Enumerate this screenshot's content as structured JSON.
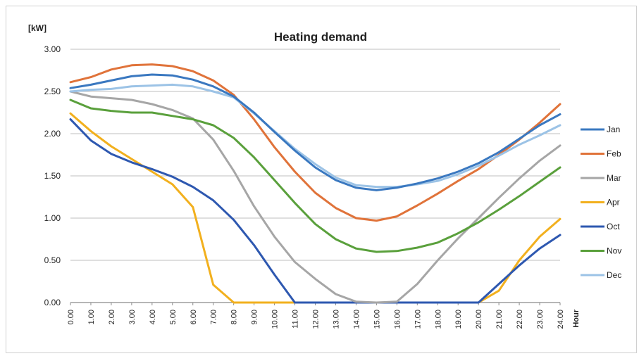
{
  "chart_data": {
    "type": "line",
    "title": "Heating demand",
    "ylabel": "[kW]",
    "xlabel": "Hour",
    "ylim": [
      0,
      3
    ],
    "yticks": [
      "0.00",
      "0.50",
      "1.00",
      "1.50",
      "2.00",
      "2.50",
      "3.00"
    ],
    "categories": [
      "0.00",
      "1.00",
      "2.00",
      "3.00",
      "4.00",
      "5.00",
      "6.00",
      "7.00",
      "8.00",
      "9.00",
      "10.00",
      "11.00",
      "12.00",
      "13.00",
      "14.00",
      "15.00",
      "16.00",
      "17.00",
      "18.00",
      "19.00",
      "20.00",
      "21.00",
      "22.00",
      "23.00",
      "24.00"
    ],
    "grid": true,
    "legend_position": "right",
    "series": [
      {
        "name": "Jan",
        "color": "#3a78c0",
        "values": [
          2.54,
          2.58,
          2.63,
          2.68,
          2.7,
          2.69,
          2.64,
          2.56,
          2.44,
          2.25,
          2.02,
          1.8,
          1.6,
          1.45,
          1.36,
          1.33,
          1.36,
          1.41,
          1.47,
          1.55,
          1.65,
          1.78,
          1.94,
          2.1,
          2.23
        ]
      },
      {
        "name": "Feb",
        "color": "#e0733a",
        "values": [
          2.61,
          2.67,
          2.76,
          2.81,
          2.82,
          2.8,
          2.74,
          2.63,
          2.46,
          2.17,
          1.84,
          1.55,
          1.3,
          1.12,
          1.0,
          0.97,
          1.02,
          1.15,
          1.29,
          1.44,
          1.58,
          1.75,
          1.93,
          2.13,
          2.35
        ]
      },
      {
        "name": "Mar",
        "color": "#a6a6a6",
        "values": [
          2.5,
          2.44,
          2.42,
          2.4,
          2.35,
          2.28,
          2.18,
          1.93,
          1.56,
          1.14,
          0.78,
          0.48,
          0.28,
          0.1,
          0.01,
          0.0,
          0.01,
          0.22,
          0.5,
          0.76,
          1.0,
          1.24,
          1.47,
          1.68,
          1.86
        ]
      },
      {
        "name": "Apr",
        "color": "#f2b01e",
        "values": [
          2.24,
          2.03,
          1.85,
          1.7,
          1.55,
          1.4,
          1.13,
          0.21,
          0.0,
          0.0,
          0.0,
          0.0,
          0.0,
          0.0,
          0.0,
          0.0,
          0.0,
          0.0,
          0.0,
          0.0,
          0.0,
          0.14,
          0.5,
          0.78,
          0.99
        ]
      },
      {
        "name": "Oct",
        "color": "#2e58b0",
        "values": [
          2.17,
          1.92,
          1.76,
          1.66,
          1.58,
          1.49,
          1.37,
          1.21,
          0.98,
          0.68,
          0.33,
          0.0,
          0.0,
          0.0,
          0.0,
          0.0,
          0.0,
          0.0,
          0.0,
          0.0,
          0.0,
          0.22,
          0.44,
          0.64,
          0.8
        ]
      },
      {
        "name": "Nov",
        "color": "#5aa03c",
        "values": [
          2.4,
          2.3,
          2.27,
          2.25,
          2.25,
          2.21,
          2.17,
          2.1,
          1.95,
          1.72,
          1.45,
          1.18,
          0.93,
          0.75,
          0.64,
          0.6,
          0.61,
          0.65,
          0.71,
          0.82,
          0.95,
          1.1,
          1.26,
          1.43,
          1.6
        ]
      },
      {
        "name": "Dec",
        "color": "#9cc3e6",
        "values": [
          2.5,
          2.52,
          2.53,
          2.56,
          2.57,
          2.58,
          2.56,
          2.5,
          2.43,
          2.24,
          2.03,
          1.82,
          1.64,
          1.48,
          1.39,
          1.37,
          1.37,
          1.4,
          1.44,
          1.52,
          1.62,
          1.74,
          1.87,
          1.98,
          2.1
        ]
      }
    ]
  }
}
